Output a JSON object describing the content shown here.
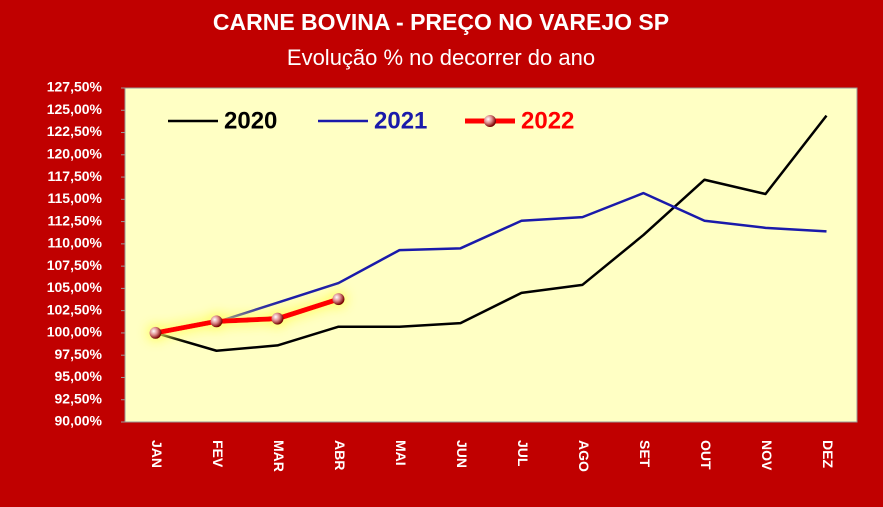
{
  "chart_data": {
    "type": "line",
    "title": "CARNE BOVINA - PREÇO NO VAREJO SP",
    "subtitle": "Evolução % no decorrer do ano",
    "categories": [
      "JAN",
      "FEV",
      "MAR",
      "ABR",
      "MAI",
      "JUN",
      "JUL",
      "AGO",
      "SET",
      "OUT",
      "NOV",
      "DEZ"
    ],
    "series": [
      {
        "name": "2020",
        "color": "#000000",
        "values": [
          100,
          98.0,
          98.6,
          100.7,
          100.7,
          101.1,
          104.5,
          105.4,
          111.0,
          117.2,
          115.6,
          124.4
        ]
      },
      {
        "name": "2021",
        "color": "#1a1aaa",
        "values": [
          100,
          101.2,
          103.4,
          105.6,
          109.3,
          109.5,
          112.6,
          113.0,
          115.7,
          112.6,
          111.8,
          111.4
        ]
      },
      {
        "name": "2022",
        "color": "#ff0000",
        "values": [
          100,
          101.3,
          101.6,
          103.8,
          null,
          null,
          null,
          null,
          null,
          null,
          null,
          null
        ]
      }
    ],
    "ylim": [
      90,
      127.5
    ],
    "yticks": [
      {
        "value": 90,
        "label": "90,00%"
      },
      {
        "value": 92.5,
        "label": "92,50%"
      },
      {
        "value": 95,
        "label": "95,00%"
      },
      {
        "value": 97.5,
        "label": "97,50%"
      },
      {
        "value": 100,
        "label": "100,00%"
      },
      {
        "value": 102.5,
        "label": "102,50%"
      },
      {
        "value": 105,
        "label": "105,00%"
      },
      {
        "value": 107.5,
        "label": "107,50%"
      },
      {
        "value": 110,
        "label": "110,00%"
      },
      {
        "value": 112.5,
        "label": "112,50%"
      },
      {
        "value": 115,
        "label": "115,00%"
      },
      {
        "value": 117.5,
        "label": "117,50%"
      },
      {
        "value": 120,
        "label": "120,00%"
      },
      {
        "value": 122.5,
        "label": "122,50%"
      },
      {
        "value": 125,
        "label": "125,00%"
      },
      {
        "value": 127.5,
        "label": "127,50%"
      }
    ]
  }
}
